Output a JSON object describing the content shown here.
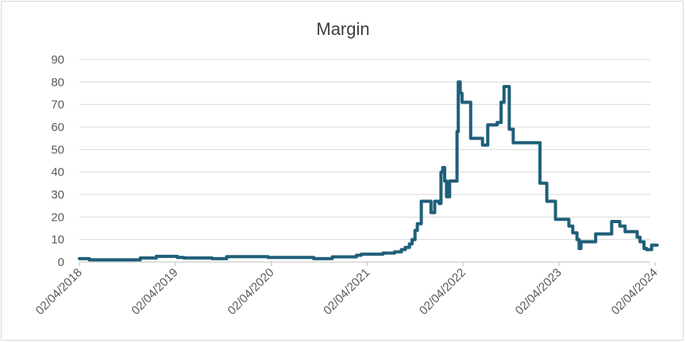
{
  "chart_data": {
    "type": "line",
    "title": "Margin",
    "xlabel": "",
    "ylabel": "",
    "ylim": [
      0,
      90
    ],
    "yticks": [
      0,
      10,
      20,
      30,
      40,
      50,
      60,
      70,
      80,
      90
    ],
    "xlim": [
      "2018-04-02",
      "2024-03-15"
    ],
    "xtick_labels": [
      "02/04/2018",
      "02/04/2019",
      "02/04/2020",
      "02/04/2021",
      "02/04/2022",
      "02/04/2023",
      "02/04/2024"
    ],
    "xtick_dates": [
      "2018-04-02",
      "2019-04-02",
      "2020-04-02",
      "2021-04-02",
      "2022-04-02",
      "2023-04-02",
      "2024-04-02"
    ],
    "grid": "horizontal",
    "legend": "none",
    "line_color": "#1f5f7a",
    "series": [
      {
        "step": true,
        "points": [
          [
            "2018-04-02",
            1.5
          ],
          [
            "2018-05-10",
            1.0
          ],
          [
            "2018-11-20",
            1.8
          ],
          [
            "2019-01-20",
            2.5
          ],
          [
            "2019-04-10",
            2.0
          ],
          [
            "2019-05-05",
            1.8
          ],
          [
            "2019-08-20",
            1.5
          ],
          [
            "2019-10-15",
            2.4
          ],
          [
            "2020-03-20",
            2.0
          ],
          [
            "2020-09-10",
            1.5
          ],
          [
            "2020-11-20",
            2.3
          ],
          [
            "2021-02-20",
            3.0
          ],
          [
            "2021-03-10",
            3.5
          ],
          [
            "2021-06-01",
            4.0
          ],
          [
            "2021-07-15",
            4.5
          ],
          [
            "2021-08-10",
            5.5
          ],
          [
            "2021-08-25",
            6.5
          ],
          [
            "2021-09-10",
            8.0
          ],
          [
            "2021-09-20",
            10.0
          ],
          [
            "2021-10-01",
            14.0
          ],
          [
            "2021-10-10",
            17.0
          ],
          [
            "2021-10-25",
            27.0
          ],
          [
            "2021-12-01",
            22.0
          ],
          [
            "2021-12-15",
            27.0
          ],
          [
            "2022-01-01",
            26.0
          ],
          [
            "2022-01-08",
            40.0
          ],
          [
            "2022-01-15",
            42.0
          ],
          [
            "2022-01-22",
            36.0
          ],
          [
            "2022-01-29",
            29.0
          ],
          [
            "2022-02-10",
            36.0
          ],
          [
            "2022-03-10",
            58.0
          ],
          [
            "2022-03-15",
            80.0
          ],
          [
            "2022-03-22",
            75.0
          ],
          [
            "2022-03-29",
            71.0
          ],
          [
            "2022-05-01",
            55.0
          ],
          [
            "2022-06-15",
            52.0
          ],
          [
            "2022-07-05",
            61.0
          ],
          [
            "2022-08-10",
            62.0
          ],
          [
            "2022-08-25",
            71.0
          ],
          [
            "2022-09-05",
            78.0
          ],
          [
            "2022-09-25",
            59.0
          ],
          [
            "2022-10-10",
            53.0
          ],
          [
            "2023-01-20",
            35.0
          ],
          [
            "2023-02-15",
            27.0
          ],
          [
            "2023-03-20",
            19.0
          ],
          [
            "2023-05-10",
            16.0
          ],
          [
            "2023-05-25",
            13.0
          ],
          [
            "2023-06-10",
            10.0
          ],
          [
            "2023-06-18",
            6.0
          ],
          [
            "2023-06-25",
            9.0
          ],
          [
            "2023-08-20",
            12.5
          ],
          [
            "2023-10-20",
            18.0
          ],
          [
            "2023-11-20",
            16.0
          ],
          [
            "2023-12-10",
            13.5
          ],
          [
            "2024-01-25",
            11.0
          ],
          [
            "2024-02-05",
            9.0
          ],
          [
            "2024-02-20",
            6.0
          ],
          [
            "2024-03-01",
            5.5
          ],
          [
            "2024-03-20",
            7.5
          ],
          [
            "2024-04-10",
            7.5
          ]
        ]
      }
    ]
  }
}
